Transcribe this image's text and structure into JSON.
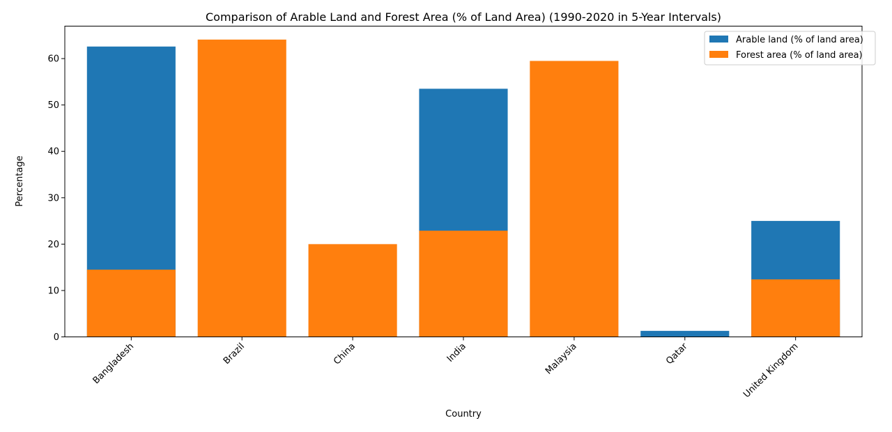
{
  "chart_data": {
    "type": "bar",
    "title": "Comparison of Arable Land and Forest Area (% of Land Area) (1990-2020 in 5-Year Intervals)",
    "xlabel": "Country",
    "ylabel": "Percentage",
    "categories": [
      "Bangladesh",
      "Brazil",
      "China",
      "India",
      "Malaysia",
      "Qatar",
      "United Kingdom"
    ],
    "ylim": [
      0,
      67
    ],
    "yticks": [
      0,
      10,
      20,
      30,
      40,
      50,
      60
    ],
    "grid": false,
    "legend_position": "top-right",
    "overlap": "drawn over each other, forest area in front",
    "series": [
      {
        "name": "Arable land (% of land area)",
        "color": "#1f77b4",
        "values": [
          62.6,
          0,
          0,
          53.5,
          0,
          1.3,
          25.0
        ]
      },
      {
        "name": "Forest area (% of land area)",
        "color": "#ff7f0e",
        "values": [
          14.5,
          64.1,
          20.0,
          22.9,
          59.5,
          0,
          12.4
        ]
      }
    ]
  }
}
